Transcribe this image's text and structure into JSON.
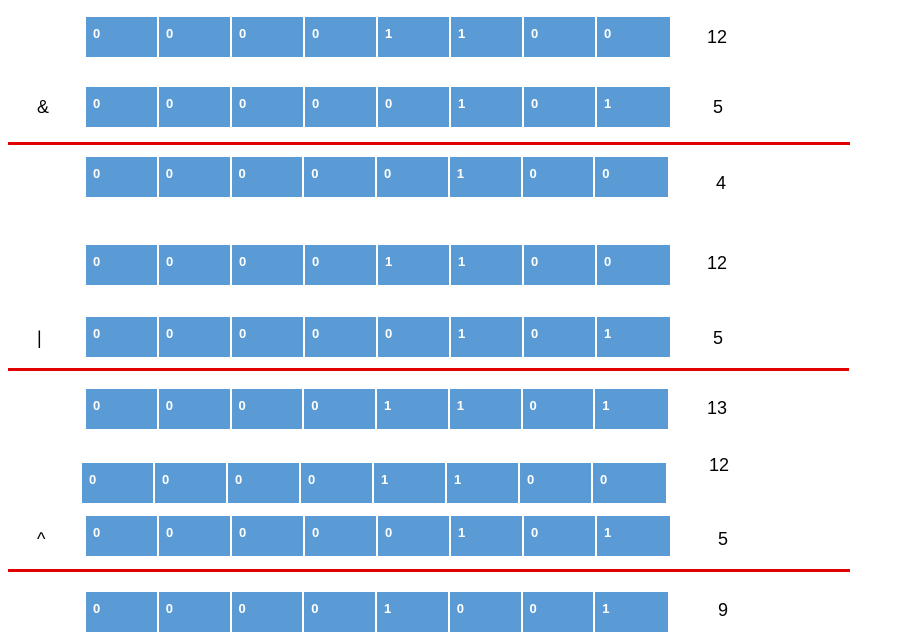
{
  "rows": [
    {
      "bits": [
        "0",
        "0",
        "0",
        "0",
        "1",
        "1",
        "0",
        "0"
      ],
      "value": "12",
      "operator": ""
    },
    {
      "bits": [
        "0",
        "0",
        "0",
        "0",
        "0",
        "1",
        "0",
        "1"
      ],
      "value": "5",
      "operator": "&"
    },
    {
      "bits": [
        "0",
        "0",
        "0",
        "0",
        "0",
        "1",
        "0",
        "0"
      ],
      "value": "4",
      "operator": ""
    },
    {
      "bits": [
        "0",
        "0",
        "0",
        "0",
        "1",
        "1",
        "0",
        "0"
      ],
      "value": "12",
      "operator": ""
    },
    {
      "bits": [
        "0",
        "0",
        "0",
        "0",
        "0",
        "1",
        "0",
        "1"
      ],
      "value": "5",
      "operator": "|"
    },
    {
      "bits": [
        "0",
        "0",
        "0",
        "0",
        "1",
        "1",
        "0",
        "1"
      ],
      "value": "13",
      "operator": ""
    },
    {
      "bits": [
        "0",
        "0",
        "0",
        "0",
        "1",
        "1",
        "0",
        "0"
      ],
      "value": "12",
      "operator": ""
    },
    {
      "bits": [
        "0",
        "0",
        "0",
        "0",
        "0",
        "1",
        "0",
        "1"
      ],
      "value": "5",
      "operator": "^"
    },
    {
      "bits": [
        "0",
        "0",
        "0",
        "0",
        "1",
        "0",
        "0",
        "1"
      ],
      "value": "9",
      "operator": ""
    }
  ],
  "colors": {
    "cell": "#5b9bd5",
    "rule": "#e00000"
  }
}
